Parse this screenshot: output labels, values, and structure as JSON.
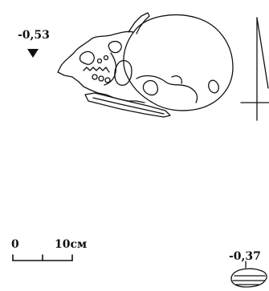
{
  "markers": {
    "depth_1": "-0,53",
    "depth_2": "-0,37"
  },
  "scale": {
    "start_label": "0",
    "end_label": "10см"
  },
  "colors": {
    "ink": "#111111",
    "background": "#ffffff"
  },
  "icons": {
    "depth_marker": "down-triangle-icon"
  }
}
